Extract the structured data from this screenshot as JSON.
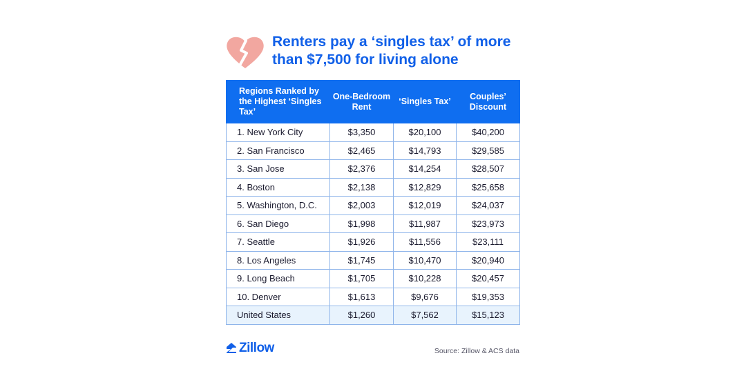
{
  "title": "Renters pay a ‘singles tax’ of more than $7,500 for living alone",
  "colors": {
    "accent": "#1160e8",
    "header_bg": "#0f6ef0",
    "heart": "#f2a7a0",
    "highlight_row": "#e8f3fd"
  },
  "icons": {
    "header": "broken-heart-icon",
    "logo": "zillow-house-icon"
  },
  "table": {
    "headers": [
      "Regions Ranked by the Highest ‘Singles Tax’",
      "One-Bedroom Rent",
      "‘Singles Tax’",
      "Couples’ Discount"
    ],
    "rows": [
      [
        "1. New York City",
        "$3,350",
        "$20,100",
        "$40,200"
      ],
      [
        "2. San Francisco",
        "$2,465",
        "$14,793",
        "$29,585"
      ],
      [
        "3. San Jose",
        "$2,376",
        "$14,254",
        "$28,507"
      ],
      [
        "4. Boston",
        "$2,138",
        "$12,829",
        "$25,658"
      ],
      [
        "5. Washington, D.C.",
        "$2,003",
        "$12,019",
        "$24,037"
      ],
      [
        "6. San Diego",
        "$1,998",
        "$11,987",
        "$23,973"
      ],
      [
        "7. Seattle",
        "$1,926",
        "$11,556",
        "$23,111"
      ],
      [
        "8. Los Angeles",
        "$1,745",
        "$10,470",
        "$20,940"
      ],
      [
        "9. Long Beach",
        "$1,705",
        "$10,228",
        "$20,457"
      ],
      [
        "10. Denver",
        "$1,613",
        "$9,676",
        "$19,353"
      ]
    ],
    "total_row": [
      "United States",
      "$1,260",
      "$7,562",
      "$15,123"
    ]
  },
  "footer": {
    "logo_text": "Zillow",
    "source": "Source: Zillow & ACS data"
  }
}
